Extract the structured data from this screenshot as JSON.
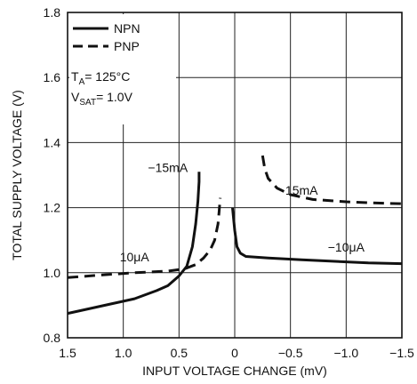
{
  "chart_data": {
    "type": "line",
    "title": "",
    "xlabel": "INPUT VOLTAGE CHANGE (mV)",
    "ylabel": "TOTAL SUPPLY VOLTAGE (V)",
    "xlim": [
      1.5,
      -1.5
    ],
    "ylim": [
      0.8,
      1.8
    ],
    "x_ticks": [
      1.5,
      1.0,
      0.5,
      0,
      -0.5,
      -1.0,
      -1.5
    ],
    "x_tick_labels": [
      "1.5",
      "1.0",
      "0.5",
      "0",
      "−0.5",
      "−1.0",
      "−1.5"
    ],
    "y_ticks": [
      0.8,
      1.0,
      1.2,
      1.4,
      1.6,
      1.8
    ],
    "y_tick_labels": [
      "0.8",
      "1.0",
      "1.2",
      "1.4",
      "1.6",
      "1.8"
    ],
    "grid": true,
    "legend_position": "top-left",
    "conditions": {
      "ta_prefix": "T",
      "ta_sub": "A",
      "ta_value": "= 125°C",
      "vsat_prefix": "V",
      "vsat_sub": "SAT",
      "vsat_value": "= 1.0V"
    },
    "series": [
      {
        "name": "NPN",
        "style": "solid",
        "segments": [
          {
            "label": "−15mA",
            "points": [
              [
                1.5,
                0.875
              ],
              [
                1.3,
                0.89
              ],
              [
                1.1,
                0.905
              ],
              [
                0.9,
                0.92
              ],
              [
                0.7,
                0.945
              ],
              [
                0.6,
                0.96
              ],
              [
                0.5,
                0.99
              ],
              [
                0.43,
                1.02
              ],
              [
                0.38,
                1.08
              ],
              [
                0.35,
                1.15
              ],
              [
                0.33,
                1.22
              ],
              [
                0.32,
                1.28
              ],
              [
                0.32,
                1.31
              ]
            ]
          },
          {
            "label": "−10μA",
            "points": [
              [
                0.02,
                1.2
              ],
              [
                0.0,
                1.13
              ],
              [
                -0.02,
                1.08
              ],
              [
                -0.05,
                1.06
              ],
              [
                -0.1,
                1.05
              ],
              [
                -0.3,
                1.045
              ],
              [
                -0.6,
                1.04
              ],
              [
                -0.9,
                1.035
              ],
              [
                -1.2,
                1.03
              ],
              [
                -1.5,
                1.028
              ]
            ]
          }
        ]
      },
      {
        "name": "PNP",
        "style": "dashed",
        "segments": [
          {
            "label": "10μA",
            "points": [
              [
                1.5,
                0.985
              ],
              [
                1.2,
                0.993
              ],
              [
                0.9,
                1.0
              ],
              [
                0.6,
                1.005
              ],
              [
                0.45,
                1.012
              ],
              [
                0.35,
                1.025
              ],
              [
                0.28,
                1.045
              ],
              [
                0.22,
                1.07
              ],
              [
                0.18,
                1.1
              ],
              [
                0.15,
                1.15
              ],
              [
                0.14,
                1.19
              ],
              [
                0.13,
                1.23
              ]
            ]
          },
          {
            "label": "15mA",
            "points": [
              [
                -0.25,
                1.36
              ],
              [
                -0.27,
                1.32
              ],
              [
                -0.3,
                1.29
              ],
              [
                -0.38,
                1.26
              ],
              [
                -0.5,
                1.24
              ],
              [
                -0.7,
                1.225
              ],
              [
                -1.0,
                1.218
              ],
              [
                -1.2,
                1.215
              ],
              [
                -1.5,
                1.212
              ]
            ]
          }
        ]
      }
    ],
    "annotations": [
      {
        "text": "−15mA",
        "x": 0.6,
        "y": 1.31
      },
      {
        "text": "15mA",
        "x": -0.6,
        "y": 1.24
      },
      {
        "text": "10μA",
        "x": 0.9,
        "y": 1.035
      },
      {
        "text": "−10μA",
        "x": -1.0,
        "y": 1.065
      }
    ]
  }
}
